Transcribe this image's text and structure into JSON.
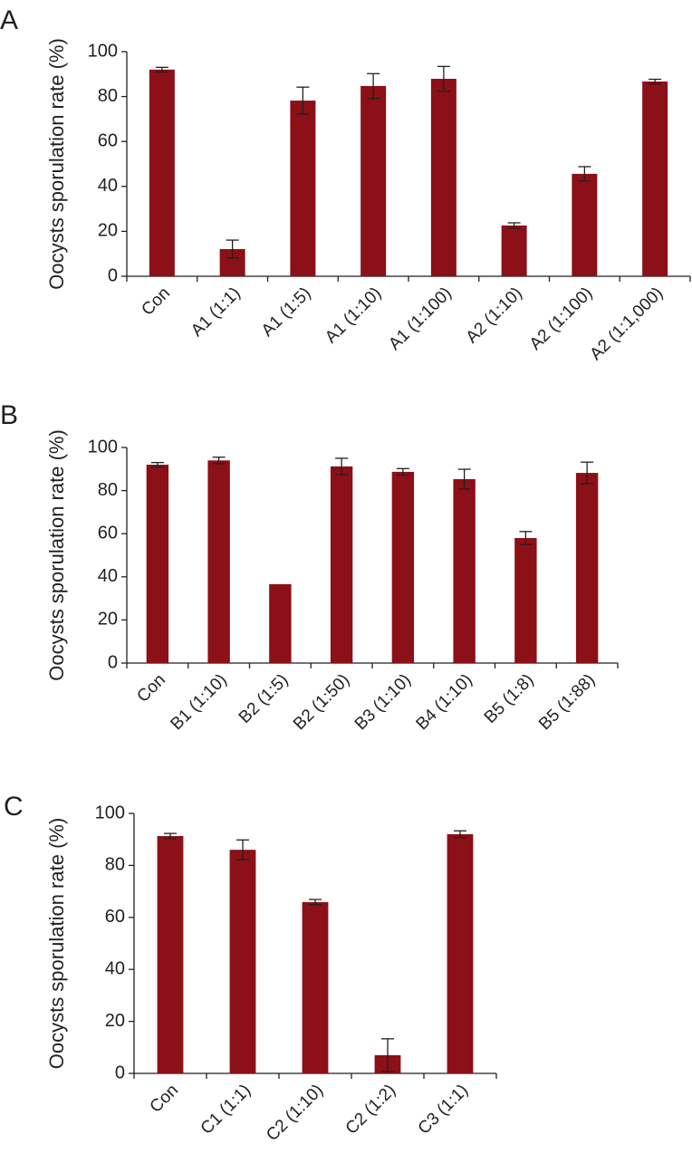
{
  "chart_data": [
    {
      "type": "bar",
      "panel_label": "A",
      "y_label": "Oocysts sporulation rate (%)",
      "color": "#8b1018",
      "categories": [
        "Con",
        "A1 (1:1)",
        "A1 (1:5)",
        "A1 (1:10)",
        "A1 (1:100)",
        "A2 (1:10)",
        "A2 (1:100)",
        "A2 (1:1,000)"
      ],
      "values": [
        92,
        12.1,
        78.2,
        84.7,
        87.9,
        22.6,
        45.6,
        86.7
      ],
      "errors": [
        1,
        4,
        6,
        5.5,
        5.5,
        1.2,
        3.2,
        1
      ],
      "ylim": [
        0,
        100
      ],
      "yticks": [
        0,
        20,
        40,
        60,
        80,
        100
      ]
    },
    {
      "type": "bar",
      "panel_label": "B",
      "y_label": "Oocysts sporulation rate (%)",
      "color": "#8b1018",
      "categories": [
        "Con",
        "B1 (1:10)",
        "B2 (1:5)",
        "B2 (1:50)",
        "B3 (1:10)",
        "B4 (1:10)",
        "B5 (1:8)",
        "B5 (1:88)"
      ],
      "values": [
        92,
        94,
        36.6,
        91.2,
        88.7,
        85.3,
        58,
        88.2
      ],
      "errors": [
        1,
        1.5,
        null,
        3.8,
        1.5,
        4.6,
        3,
        5
      ],
      "ylim": [
        0,
        100
      ],
      "yticks": [
        0,
        20,
        40,
        60,
        80,
        100
      ]
    },
    {
      "type": "bar",
      "panel_label": "C",
      "y_label": "Oocysts sporulation rate (%)",
      "color": "#8b1018",
      "categories": [
        "Con",
        "C1 (1:1)",
        "C2 (1:10)",
        "C2 (1:2)",
        "C3 (1:1)"
      ],
      "values": [
        91.3,
        86,
        65.9,
        7,
        92
      ],
      "errors": [
        1,
        3.8,
        1,
        6.3,
        1.3
      ],
      "ylim": [
        0,
        100
      ],
      "yticks": [
        0,
        20,
        40,
        60,
        80,
        100
      ]
    }
  ]
}
